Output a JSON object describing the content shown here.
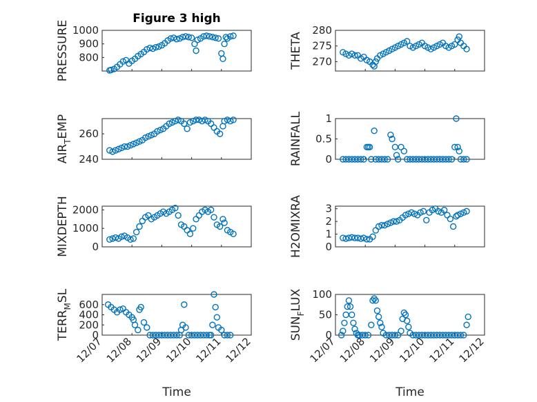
{
  "chart_data": [
    {
      "type": "scatter",
      "title": "Figure 3 high",
      "ylabel_main": "PRESSURE",
      "ylabel_sub": "",
      "ylabel_tail": "",
      "yticks": [
        800,
        900,
        1000
      ],
      "ylim": [
        700,
        1000
      ],
      "xticks": [
        "12/07",
        "12/08",
        "12/09",
        "12/10",
        "12/11",
        "12/12"
      ],
      "xlim_days": [
        0,
        5
      ],
      "show_xticklabels": false,
      "xlabel": "",
      "series": [
        {
          "x": [
            0.25,
            0.3,
            0.4,
            0.5,
            0.6,
            0.7,
            0.8,
            0.9,
            1.0,
            1.1,
            1.2,
            1.3,
            1.4,
            1.5,
            1.6,
            1.7,
            1.8,
            1.9,
            2.0,
            2.1,
            2.2,
            2.3,
            2.4,
            2.5,
            2.6,
            2.7,
            2.8,
            2.9,
            3.0,
            3.1,
            3.15,
            3.2,
            3.3,
            3.4,
            3.5,
            3.6,
            3.7,
            3.8,
            3.9,
            4.0,
            4.05,
            4.1,
            4.15,
            4.2,
            4.3,
            4.4
          ],
          "y": [
            705,
            708,
            715,
            730,
            750,
            770,
            780,
            755,
            775,
            790,
            810,
            825,
            840,
            860,
            870,
            865,
            875,
            880,
            890,
            905,
            925,
            940,
            945,
            935,
            940,
            950,
            955,
            950,
            945,
            900,
            850,
            930,
            940,
            955,
            960,
            955,
            950,
            945,
            940,
            830,
            790,
            900,
            950,
            940,
            955,
            960
          ]
        }
      ]
    },
    {
      "type": "scatter",
      "title": "",
      "ylabel_main": "THETA",
      "ylabel_sub": "",
      "ylabel_tail": "",
      "yticks": [
        270,
        275,
        280
      ],
      "ylim": [
        267,
        280
      ],
      "xticks": [
        "12/07",
        "12/08",
        "12/09",
        "12/10",
        "12/11",
        "12/12"
      ],
      "xlim_days": [
        0,
        5
      ],
      "show_xticklabels": false,
      "xlabel": "",
      "series": [
        {
          "x": [
            0.25,
            0.35,
            0.45,
            0.55,
            0.65,
            0.75,
            0.85,
            0.95,
            1.05,
            1.15,
            1.25,
            1.3,
            1.35,
            1.4,
            1.5,
            1.6,
            1.7,
            1.8,
            1.9,
            2.0,
            2.1,
            2.2,
            2.3,
            2.4,
            2.5,
            2.6,
            2.7,
            2.8,
            2.9,
            3.0,
            3.1,
            3.2,
            3.3,
            3.4,
            3.5,
            3.6,
            3.7,
            3.8,
            3.9,
            4.0,
            4.1,
            4.15,
            4.2,
            4.3,
            4.4
          ],
          "y": [
            273,
            272.5,
            272,
            272.5,
            272,
            272,
            271,
            271.5,
            270.5,
            270,
            269,
            268.5,
            270,
            271,
            272,
            272.5,
            273,
            273.5,
            274,
            274.5,
            275,
            275.5,
            276,
            276.5,
            275,
            274.5,
            275,
            275.5,
            276,
            275,
            274.5,
            274,
            274.5,
            275,
            275.5,
            276,
            275,
            274.5,
            275,
            275.5,
            277,
            278,
            276,
            275,
            274
          ]
        }
      ]
    },
    {
      "type": "scatter",
      "title": "",
      "ylabel_main": "AIR",
      "ylabel_sub": "T",
      "ylabel_tail": "EMP",
      "yticks": [
        240,
        260
      ],
      "ylim": [
        240,
        272
      ],
      "xticks": [
        "12/07",
        "12/08",
        "12/09",
        "12/10",
        "12/11",
        "12/12"
      ],
      "xlim_days": [
        0,
        5
      ],
      "show_xticklabels": false,
      "xlabel": "",
      "series": [
        {
          "x": [
            0.25,
            0.35,
            0.45,
            0.55,
            0.65,
            0.75,
            0.85,
            0.95,
            1.05,
            1.15,
            1.25,
            1.35,
            1.45,
            1.55,
            1.65,
            1.75,
            1.85,
            1.95,
            2.05,
            2.15,
            2.25,
            2.35,
            2.45,
            2.55,
            2.65,
            2.75,
            2.85,
            2.95,
            3.05,
            3.15,
            3.25,
            3.35,
            3.45,
            3.55,
            3.65,
            3.75,
            3.85,
            3.95,
            4.05,
            4.1,
            4.2,
            4.3,
            4.4
          ],
          "y": [
            247,
            246,
            247,
            248,
            249,
            250,
            250,
            251,
            252,
            253,
            254,
            255,
            257,
            258,
            259,
            260,
            262,
            263,
            264,
            266,
            268,
            269,
            270,
            271,
            270,
            268,
            264,
            269,
            270,
            271,
            271,
            270,
            271,
            270,
            268,
            265,
            262,
            260,
            266,
            270,
            271,
            270,
            271
          ]
        }
      ]
    },
    {
      "type": "scatter",
      "title": "",
      "ylabel_main": "RAINFALL",
      "ylabel_sub": "",
      "ylabel_tail": "",
      "yticks": [
        0,
        0.5,
        1
      ],
      "ylim": [
        0,
        1
      ],
      "xticks": [
        "12/07",
        "12/08",
        "12/09",
        "12/10",
        "12/11",
        "12/12"
      ],
      "xlim_days": [
        0,
        5
      ],
      "show_xticklabels": false,
      "xlabel": "",
      "series": [
        {
          "x": [
            0.25,
            0.35,
            0.45,
            0.55,
            0.65,
            0.75,
            0.85,
            0.95,
            1.05,
            1.1,
            1.15,
            1.2,
            1.3,
            1.35,
            1.45,
            1.55,
            1.65,
            1.75,
            1.85,
            1.9,
            2.0,
            2.05,
            2.1,
            2.2,
            2.3,
            2.4,
            2.5,
            2.6,
            2.7,
            2.8,
            2.9,
            3.0,
            3.1,
            3.2,
            3.3,
            3.4,
            3.5,
            3.6,
            3.7,
            3.8,
            3.9,
            4.0,
            4.05,
            4.1,
            4.15,
            4.2,
            4.3,
            4.4
          ],
          "y": [
            0,
            0,
            0,
            0,
            0,
            0,
            0,
            0,
            0.3,
            0.3,
            0.3,
            0,
            0.7,
            0,
            0,
            0,
            0,
            0,
            0.6,
            0.5,
            0.3,
            0.1,
            0,
            0.3,
            0.2,
            0,
            0,
            0,
            0,
            0,
            0,
            0,
            0,
            0,
            0,
            0,
            0,
            0,
            0,
            0,
            0,
            0.3,
            1.0,
            0.3,
            0.2,
            0,
            0,
            0
          ]
        }
      ]
    },
    {
      "type": "scatter",
      "title": "",
      "ylabel_main": "MIXDEPTH",
      "ylabel_sub": "",
      "ylabel_tail": "",
      "yticks": [
        0,
        1000,
        2000
      ],
      "ylim": [
        0,
        2200
      ],
      "xticks": [
        "12/07",
        "12/08",
        "12/09",
        "12/10",
        "12/11",
        "12/12"
      ],
      "xlim_days": [
        0,
        5
      ],
      "show_xticklabels": false,
      "xlabel": "",
      "series": [
        {
          "x": [
            0.25,
            0.35,
            0.45,
            0.55,
            0.65,
            0.75,
            0.85,
            0.95,
            1.05,
            1.15,
            1.25,
            1.35,
            1.45,
            1.55,
            1.65,
            1.75,
            1.85,
            1.95,
            2.05,
            2.15,
            2.25,
            2.35,
            2.45,
            2.55,
            2.65,
            2.75,
            2.85,
            2.95,
            3.05,
            3.15,
            3.25,
            3.35,
            3.45,
            3.55,
            3.65,
            3.75,
            3.85,
            3.95,
            4.05,
            4.1,
            4.2,
            4.3,
            4.4
          ],
          "y": [
            400,
            450,
            500,
            450,
            550,
            600,
            500,
            400,
            450,
            800,
            1100,
            1400,
            1600,
            1700,
            1500,
            1600,
            1700,
            1800,
            1900,
            1800,
            1900,
            2000,
            2100,
            1700,
            1200,
            1100,
            900,
            700,
            1000,
            1500,
            1700,
            1900,
            2000,
            1900,
            2000,
            1600,
            1200,
            1100,
            1500,
            1300,
            900,
            800,
            700
          ]
        }
      ]
    },
    {
      "type": "scatter",
      "title": "",
      "ylabel_main": "H2OMIXRA",
      "ylabel_sub": "",
      "ylabel_tail": "",
      "yticks": [
        0,
        1,
        2,
        3
      ],
      "ylim": [
        0,
        3.2
      ],
      "xticks": [
        "12/07",
        "12/08",
        "12/09",
        "12/10",
        "12/11",
        "12/12"
      ],
      "xlim_days": [
        0,
        5
      ],
      "show_xticklabels": false,
      "xlabel": "",
      "series": [
        {
          "x": [
            0.25,
            0.35,
            0.45,
            0.55,
            0.65,
            0.75,
            0.85,
            0.95,
            1.05,
            1.15,
            1.25,
            1.35,
            1.45,
            1.55,
            1.65,
            1.75,
            1.85,
            1.95,
            2.05,
            2.15,
            2.25,
            2.35,
            2.45,
            2.55,
            2.65,
            2.75,
            2.85,
            2.95,
            3.05,
            3.15,
            3.25,
            3.35,
            3.45,
            3.55,
            3.65,
            3.75,
            3.85,
            3.95,
            4.05,
            4.1,
            4.2,
            4.3,
            4.4
          ],
          "y": [
            0.7,
            0.65,
            0.7,
            0.75,
            0.7,
            0.7,
            0.65,
            0.7,
            0.6,
            0.6,
            0.8,
            1.3,
            1.6,
            1.7,
            1.7,
            1.8,
            1.9,
            2.0,
            2.0,
            2.1,
            2.3,
            2.5,
            2.6,
            2.7,
            2.6,
            2.5,
            2.7,
            2.8,
            2.1,
            2.7,
            2.9,
            3.0,
            2.8,
            2.7,
            2.9,
            2.5,
            2.2,
            1.6,
            2.4,
            2.5,
            2.6,
            2.7,
            2.8
          ]
        }
      ]
    },
    {
      "type": "scatter",
      "title": "",
      "ylabel_main": "TERR",
      "ylabel_sub": "M",
      "ylabel_tail": "SL",
      "yticks": [
        0,
        200,
        400,
        600
      ],
      "ylim": [
        0,
        800
      ],
      "xticks": [
        "12/07",
        "12/08",
        "12/09",
        "12/10",
        "12/11",
        "12/12"
      ],
      "xlim_days": [
        0,
        5
      ],
      "show_xticklabels": true,
      "xlabel": "Time",
      "series": [
        {
          "x": [
            0.2,
            0.3,
            0.4,
            0.5,
            0.6,
            0.7,
            0.8,
            0.9,
            1.0,
            1.05,
            1.1,
            1.2,
            1.25,
            1.3,
            1.4,
            1.5,
            1.6,
            1.7,
            1.8,
            1.9,
            2.0,
            2.1,
            2.2,
            2.3,
            2.4,
            2.5,
            2.6,
            2.65,
            2.7,
            2.75,
            2.8,
            2.9,
            3.0,
            3.1,
            3.2,
            3.3,
            3.4,
            3.5,
            3.6,
            3.65,
            3.7,
            3.75,
            3.8,
            3.85,
            3.9,
            4.0,
            4.1,
            4.2,
            4.3
          ],
          "y": [
            600,
            550,
            500,
            450,
            500,
            520,
            450,
            400,
            350,
            300,
            200,
            100,
            500,
            550,
            250,
            150,
            0,
            0,
            0,
            0,
            0,
            0,
            0,
            0,
            0,
            0,
            0,
            100,
            200,
            600,
            150,
            0,
            0,
            0,
            0,
            0,
            0,
            0,
            0,
            0,
            200,
            800,
            550,
            350,
            150,
            100,
            0,
            0,
            0
          ]
        }
      ]
    },
    {
      "type": "scatter",
      "title": "",
      "ylabel_main": "SUN",
      "ylabel_sub": "F",
      "ylabel_tail": "LUX",
      "yticks": [
        0,
        50,
        100
      ],
      "ylim": [
        0,
        100
      ],
      "xticks": [
        "12/07",
        "12/08",
        "12/09",
        "12/10",
        "12/11",
        "12/12"
      ],
      "xlim_days": [
        0,
        5
      ],
      "show_xticklabels": true,
      "xlabel": "Time",
      "series": [
        {
          "x": [
            0.2,
            0.25,
            0.3,
            0.35,
            0.4,
            0.45,
            0.5,
            0.55,
            0.6,
            0.65,
            0.7,
            0.75,
            0.8,
            0.9,
            1.0,
            1.1,
            1.2,
            1.25,
            1.3,
            1.35,
            1.4,
            1.45,
            1.5,
            1.55,
            1.6,
            1.7,
            1.8,
            1.9,
            2.0,
            2.1,
            2.2,
            2.25,
            2.3,
            2.35,
            2.4,
            2.45,
            2.5,
            2.6,
            2.7,
            2.8,
            2.9,
            3.0,
            3.1,
            3.2,
            3.3,
            3.4,
            3.5,
            3.6,
            3.7,
            3.8,
            3.9,
            4.0,
            4.1,
            4.2,
            4.3,
            4.4,
            4.45
          ],
          "y": [
            0,
            10,
            30,
            50,
            70,
            85,
            70,
            50,
            30,
            15,
            5,
            0,
            0,
            0,
            0,
            0,
            25,
            85,
            90,
            85,
            60,
            45,
            30,
            20,
            5,
            0,
            0,
            0,
            0,
            0,
            10,
            40,
            55,
            50,
            35,
            20,
            5,
            0,
            0,
            0,
            0,
            0,
            0,
            0,
            0,
            0,
            0,
            0,
            0,
            0,
            0,
            0,
            0,
            0,
            0,
            25,
            45
          ]
        }
      ]
    }
  ]
}
